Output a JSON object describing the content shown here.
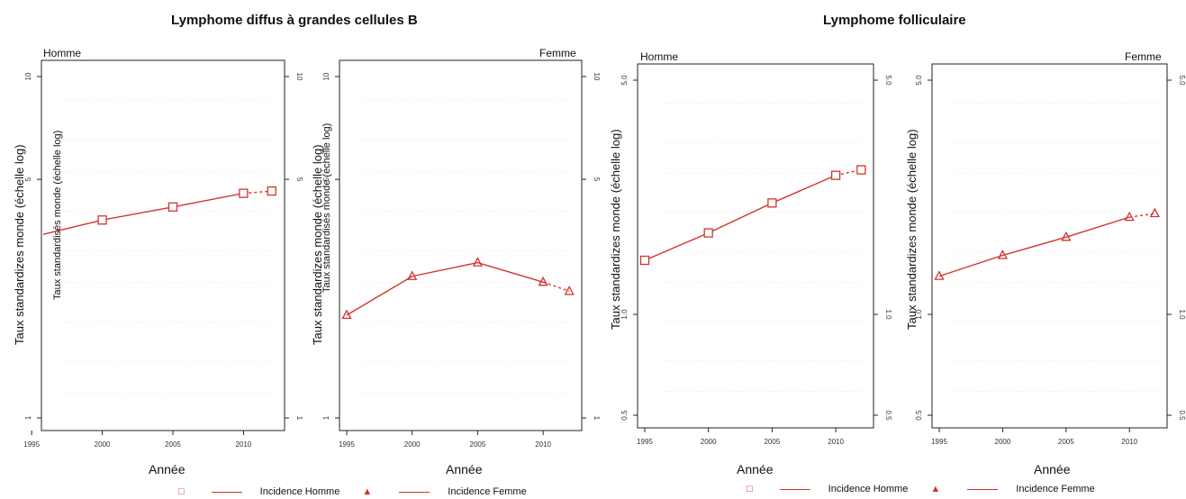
{
  "groups": [
    {
      "title": "Lymphome diffus à grandes cellules B"
    },
    {
      "title": "Lymphome folliculaire"
    }
  ],
  "labels": {
    "xlabel": "Année",
    "ylabel": "Taux standardizes monde (échelle log)",
    "ylabel_alt": "Taux standardisés monde (échelle log)",
    "homme": "Homme",
    "femme": "Femme"
  },
  "legend": {
    "homme": "Incidence Homme",
    "femme": "Incidence Femme",
    "homme_marker": "□",
    "femme_marker": "▲"
  },
  "colors": {
    "series": "#d0342c",
    "axis": "#222222"
  },
  "chart_data": [
    {
      "type": "line",
      "panel": "Lymphome diffus à grandes cellules B - Homme",
      "ylog": true,
      "ylim": [
        1,
        10
      ],
      "yticks": [
        1,
        5,
        10
      ],
      "xlim": [
        1995,
        2012
      ],
      "xticks": [
        1995,
        2000,
        2005,
        2010
      ],
      "series": [
        {
          "name": "Incidence Homme",
          "marker": "square",
          "x": [
            2000,
            2005,
            2010,
            2012
          ],
          "y": [
            3.8,
            4.15,
            4.55,
            4.62
          ],
          "dashed_from_index": 2
        }
      ]
    },
    {
      "type": "line",
      "panel": "Lymphome diffus à grandes cellules B - Femme",
      "ylog": true,
      "ylim": [
        1,
        10
      ],
      "yticks": [
        1,
        5,
        10
      ],
      "xlim": [
        1995,
        2012
      ],
      "xticks": [
        1995,
        2000,
        2005,
        2010
      ],
      "series": [
        {
          "name": "Incidence Femme",
          "marker": "triangle",
          "x": [
            1995,
            2000,
            2005,
            2010,
            2012
          ],
          "y": [
            2.0,
            2.6,
            2.85,
            2.5,
            2.35
          ],
          "dashed_from_index": 3
        }
      ]
    },
    {
      "type": "line",
      "panel": "Lymphome folliculaire - Homme",
      "ylog": true,
      "ylim": [
        0.5,
        5.0
      ],
      "yticks": [
        0.5,
        1.0,
        5.0
      ],
      "xlim": [
        1995,
        2012
      ],
      "xticks": [
        1995,
        2000,
        2005,
        2010
      ],
      "series": [
        {
          "name": "Incidence Homme",
          "marker": "square",
          "x": [
            1995,
            2000,
            2005,
            2010,
            2012
          ],
          "y": [
            1.45,
            1.75,
            2.15,
            2.6,
            2.7
          ],
          "dashed_from_index": 3
        }
      ]
    },
    {
      "type": "line",
      "panel": "Lymphome folliculaire - Femme",
      "ylog": true,
      "ylim": [
        0.5,
        5.0
      ],
      "yticks": [
        0.5,
        1.0,
        5.0
      ],
      "xlim": [
        1995,
        2012
      ],
      "xticks": [
        1995,
        2000,
        2005,
        2010
      ],
      "series": [
        {
          "name": "Incidence Femme",
          "marker": "triangle",
          "x": [
            1995,
            2000,
            2005,
            2010,
            2012
          ],
          "y": [
            1.3,
            1.5,
            1.7,
            1.95,
            2.0
          ],
          "dashed_from_index": 3
        }
      ]
    }
  ]
}
